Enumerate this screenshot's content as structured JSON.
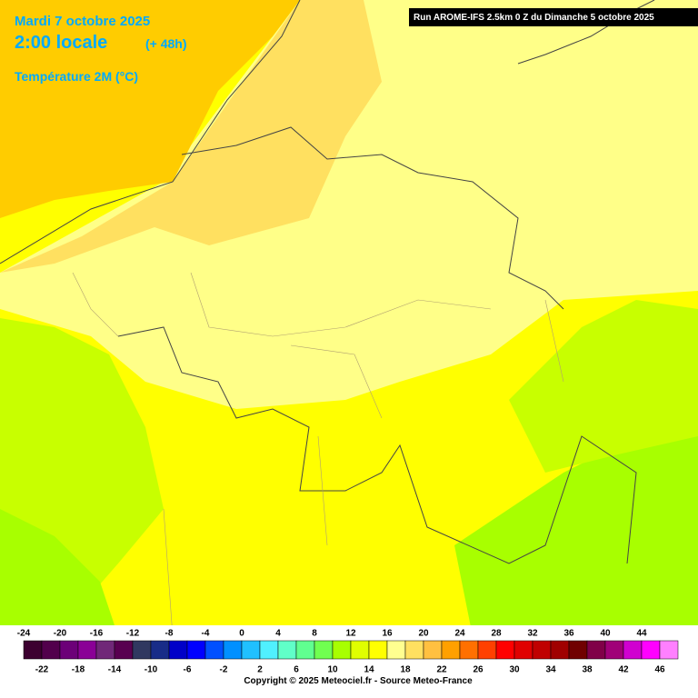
{
  "header": {
    "date": "Mardi 7 octobre 2025",
    "time": "2:00 locale",
    "lead": "(+ 48h)",
    "parameter": "Température 2M (°C)",
    "run": "Run AROME-IFS 2.5km 0 Z du Dimanche 5 octobre 2025"
  },
  "legend": {
    "items": [
      {
        "value": -24,
        "color": "#3c0030"
      },
      {
        "value": -22,
        "color": "#52004c"
      },
      {
        "value": -20,
        "color": "#6c0078"
      },
      {
        "value": -18,
        "color": "#8a0096"
      },
      {
        "value": -16,
        "color": "#702878"
      },
      {
        "value": -14,
        "color": "#580050"
      },
      {
        "value": -12,
        "color": "#303860"
      },
      {
        "value": -10,
        "color": "#182c88"
      },
      {
        "value": -8,
        "color": "#0000c8"
      },
      {
        "value": -6,
        "color": "#0000ff"
      },
      {
        "value": -4,
        "color": "#0050ff"
      },
      {
        "value": -2,
        "color": "#0090ff"
      },
      {
        "value": 0,
        "color": "#20c0ff"
      },
      {
        "value": 2,
        "color": "#50f0ff"
      },
      {
        "value": 4,
        "color": "#60ffc8"
      },
      {
        "value": 6,
        "color": "#60ff90"
      },
      {
        "value": 8,
        "color": "#70ff50"
      },
      {
        "value": 10,
        "color": "#a8ff00"
      },
      {
        "value": 12,
        "color": "#e0ff00"
      },
      {
        "value": 14,
        "color": "#ffff00"
      },
      {
        "value": 16,
        "color": "#ffff90"
      },
      {
        "value": 18,
        "color": "#ffe060"
      },
      {
        "value": 20,
        "color": "#ffc040"
      },
      {
        "value": 22,
        "color": "#ffa000"
      },
      {
        "value": 24,
        "color": "#ff7000"
      },
      {
        "value": 26,
        "color": "#ff4000"
      },
      {
        "value": 28,
        "color": "#ff0000"
      },
      {
        "value": 30,
        "color": "#e00000"
      },
      {
        "value": 32,
        "color": "#c00000"
      },
      {
        "value": 34,
        "color": "#a00000"
      },
      {
        "value": 36,
        "color": "#700000"
      },
      {
        "value": 38,
        "color": "#800048"
      },
      {
        "value": 40,
        "color": "#a00078"
      },
      {
        "value": 42,
        "color": "#d000d0"
      },
      {
        "value": 44,
        "color": "#ff00ff"
      },
      {
        "value": 46,
        "color": "#ff80ff"
      }
    ]
  },
  "footer": {
    "copyright": "Copyright © 2025 Meteociel.fr - Source Meteo-France"
  }
}
